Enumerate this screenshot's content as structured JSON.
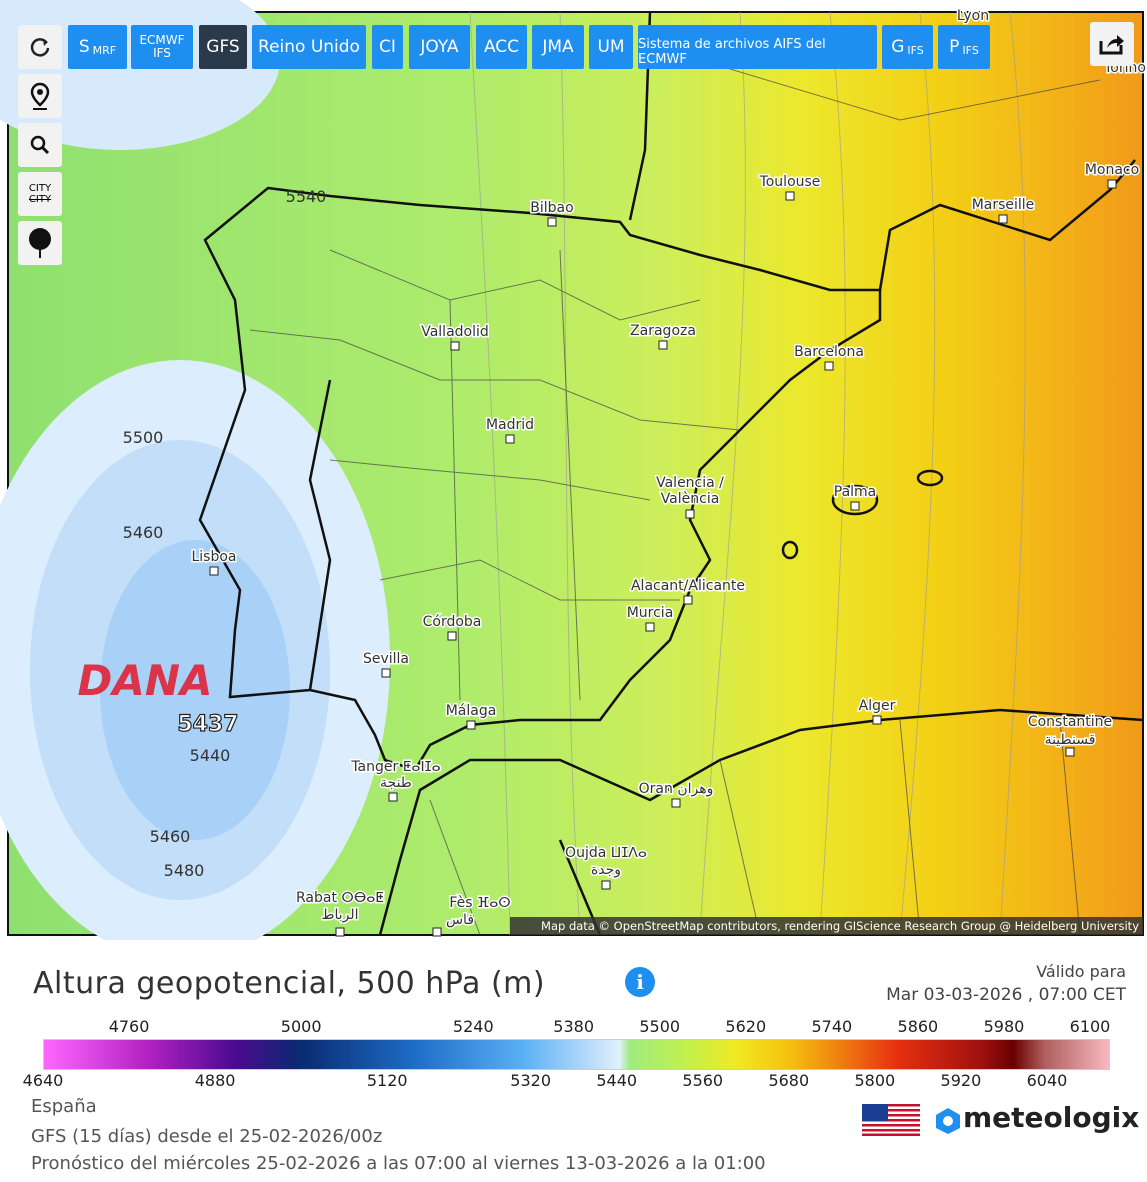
{
  "toolbar": {
    "buttons": [
      {
        "text": "S",
        "small": "MRF"
      },
      {
        "text": "ECMWF",
        "small": "IFS"
      },
      {
        "text": "GFS"
      },
      {
        "text": "Reino Unido"
      },
      {
        "text": "CI"
      },
      {
        "text": "JOYA"
      },
      {
        "text": "ACC"
      },
      {
        "text": "JMA"
      },
      {
        "text": "UM"
      },
      {
        "text": "Sistema de archivos AIFS del ECMWF"
      },
      {
        "text": "G",
        "small": "IFS"
      },
      {
        "text": "P",
        "small": "IFS"
      }
    ],
    "city_toggle": [
      "CITY",
      "CITY"
    ]
  },
  "map": {
    "cities": [
      "Lyon",
      "Torino",
      "Toulouse",
      "Monaco",
      "Marseille",
      "Bilbao",
      "Valladolid",
      "Zaragoza",
      "Barcelona",
      "Madrid",
      "Valencia /",
      "València",
      "Palma",
      "Lisboa",
      "Alacant/Alicante",
      "Murcia",
      "Córdoba",
      "Sevilla",
      "Málaga",
      "Alger",
      "Constantine",
      "قسنطينة",
      "Tanger ⵟⴰⵏⵊⴰ",
      "طنجة",
      "Oran وهران",
      "Oujda ⵡⵊⴷⴰ",
      "وجدة",
      "Rabat ⵔⴱⴰⵟ",
      "الرباط",
      "Fès ⴼⴰⵙ",
      "فاس"
    ],
    "contour_labels": [
      5540,
      5500,
      5460,
      5440,
      5460,
      5480
    ],
    "annotation": "DANA",
    "minimum": 5437,
    "attribution": "Map data © OpenStreetMap contributors, rendering GIScience Research Group @ Heidelberg University"
  },
  "legend": {
    "title": "Altura geopotencial, 500 hPa (m)",
    "valid_label": "Válido para",
    "valid_date": "Mar 03-03-2026 , 07:00 CET",
    "top_ticks": [
      4760,
      5000,
      5240,
      5380,
      5500,
      5620,
      5740,
      5860,
      5980,
      6100
    ],
    "bottom_ticks": [
      4640,
      4880,
      5120,
      5320,
      5440,
      5560,
      5680,
      5800,
      5920,
      6040
    ]
  },
  "footer": {
    "region": "España",
    "model": "GFS (15 días) desde el 25-02-2026/00z",
    "forecast": "Pronóstico del miércoles 25-02-2026 a las 07:00 al viernes 13-03-2026 a la 01:00",
    "brand": "meteologix"
  }
}
